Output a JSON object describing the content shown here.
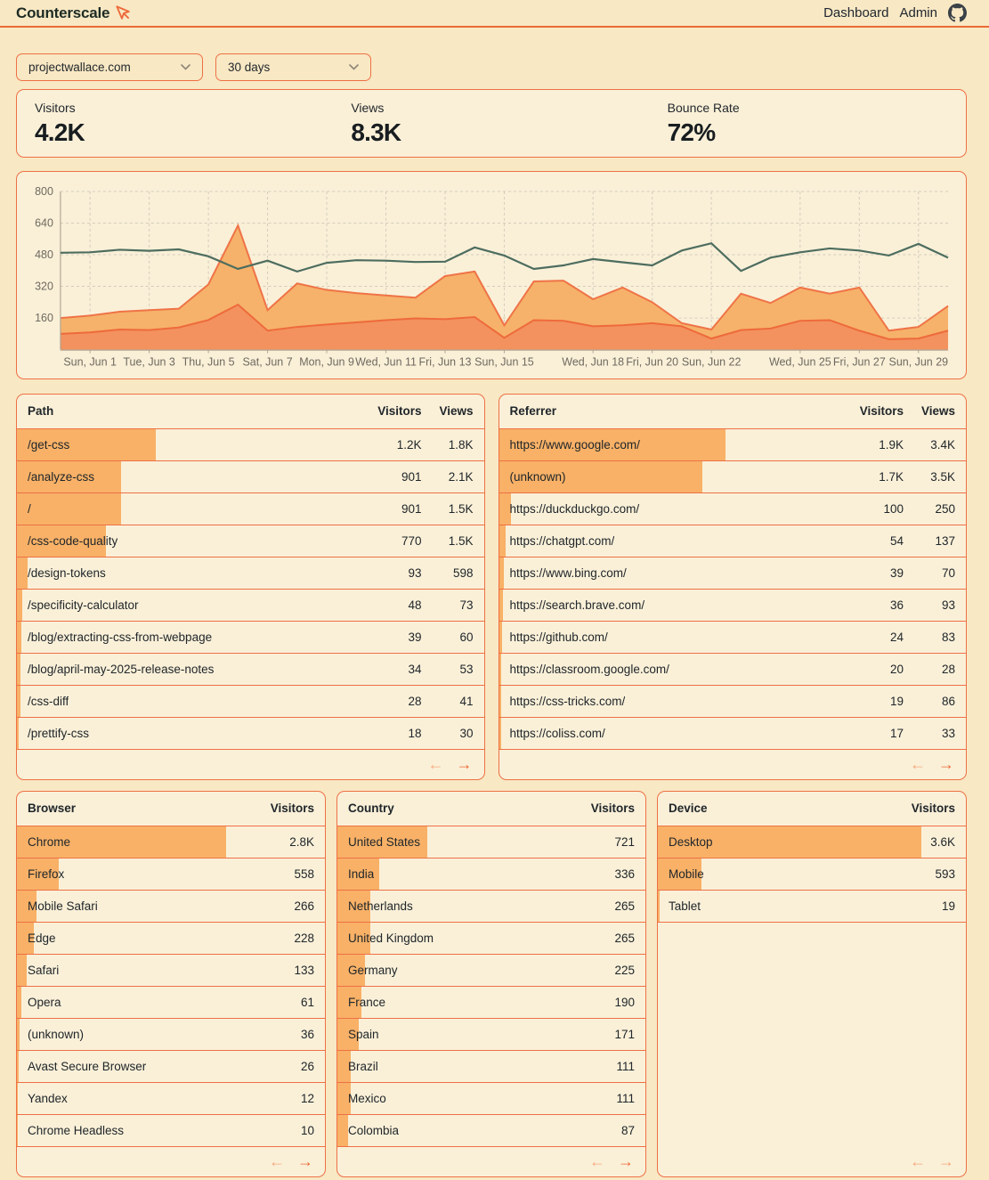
{
  "header": {
    "brand": "Counterscale",
    "nav": [
      "Dashboard",
      "Admin"
    ]
  },
  "filters": {
    "site": "projectwallace.com",
    "range": "30 days"
  },
  "stats": [
    {
      "label": "Visitors",
      "value": "4.2K"
    },
    {
      "label": "Views",
      "value": "8.3K"
    },
    {
      "label": "Bounce Rate",
      "value": "72%"
    }
  ],
  "chart_data": {
    "type": "area",
    "title": "",
    "xlabel": "",
    "ylabel": "",
    "ylim": [
      0,
      800
    ],
    "y_ticks": [
      160,
      320,
      480,
      640,
      800
    ],
    "grid": true,
    "legend": "none",
    "x_ticks": [
      {
        "d": 1,
        "label": "Sun, Jun 1"
      },
      {
        "d": 3,
        "label": "Tue, Jun 3"
      },
      {
        "d": 5,
        "label": "Thu, Jun 5"
      },
      {
        "d": 7,
        "label": "Sat, Jun 7"
      },
      {
        "d": 9,
        "label": "Mon, Jun 9"
      },
      {
        "d": 11,
        "label": "Wed, Jun 11"
      },
      {
        "d": 13,
        "label": "Fri, Jun 13"
      },
      {
        "d": 15,
        "label": "Sun, Jun 15"
      },
      {
        "d": 18,
        "label": "Wed, Jun 18"
      },
      {
        "d": 20,
        "label": "Fri, Jun 20"
      },
      {
        "d": 22,
        "label": "Sun, Jun 22"
      },
      {
        "d": 25,
        "label": "Wed, Jun 25"
      },
      {
        "d": 27,
        "label": "Fri, Jun 27"
      },
      {
        "d": 29,
        "label": "Sun, Jun 29"
      }
    ],
    "series": [
      {
        "name": "views-area",
        "fill": "#f6b26a",
        "stroke": "#ef7347",
        "values": [
          160,
          172,
          192,
          200,
          207,
          330,
          628,
          200,
          335,
          302,
          286,
          274,
          263,
          372,
          395,
          123,
          345,
          349,
          255,
          314,
          240,
          134,
          102,
          283,
          236,
          314,
          283,
          314,
          96,
          115,
          221
        ]
      },
      {
        "name": "visitors-area",
        "fill": "#f3925e",
        "stroke": "#ee6a3c",
        "values": [
          80,
          87,
          102,
          99,
          112,
          150,
          228,
          96,
          115,
          127,
          138,
          149,
          158,
          154,
          165,
          60,
          149,
          146,
          118,
          123,
          134,
          118,
          56,
          99,
          107,
          146,
          149,
          96,
          53,
          56,
          96
        ]
      },
      {
        "name": "trend-line",
        "stroke": "#4d6d5f",
        "values": [
          490,
          492,
          505,
          500,
          507,
          472,
          408,
          450,
          395,
          439,
          452,
          450,
          443,
          445,
          517,
          476,
          408,
          426,
          458,
          442,
          426,
          501,
          538,
          398,
          465,
          492,
          512,
          501,
          476,
          535,
          465
        ]
      }
    ]
  },
  "tables": {
    "path": {
      "title": "Path",
      "columns": [
        "Visitors",
        "Views"
      ],
      "pager": {
        "prev": false,
        "next": true
      },
      "rows": [
        {
          "label": "/get-css",
          "values": [
            "1.2K",
            "1.8K"
          ],
          "v": 1200
        },
        {
          "label": "/analyze-css",
          "values": [
            "901",
            "2.1K"
          ],
          "v": 901
        },
        {
          "label": "/",
          "values": [
            "901",
            "1.5K"
          ],
          "v": 901
        },
        {
          "label": "/css-code-quality",
          "values": [
            "770",
            "1.5K"
          ],
          "v": 770
        },
        {
          "label": "/design-tokens",
          "values": [
            "93",
            "598"
          ],
          "v": 93
        },
        {
          "label": "/specificity-calculator",
          "values": [
            "48",
            "73"
          ],
          "v": 48
        },
        {
          "label": "/blog/extracting-css-from-webpage",
          "values": [
            "39",
            "60"
          ],
          "v": 39
        },
        {
          "label": "/blog/april-may-2025-release-notes",
          "values": [
            "34",
            "53"
          ],
          "v": 34
        },
        {
          "label": "/css-diff",
          "values": [
            "28",
            "41"
          ],
          "v": 28
        },
        {
          "label": "/prettify-css",
          "values": [
            "18",
            "30"
          ],
          "v": 18
        }
      ]
    },
    "referrer": {
      "title": "Referrer",
      "columns": [
        "Visitors",
        "Views"
      ],
      "pager": {
        "prev": false,
        "next": true
      },
      "rows": [
        {
          "label": "https://www.google.com/",
          "values": [
            "1.9K",
            "3.4K"
          ],
          "v": 1900
        },
        {
          "label": "(unknown)",
          "values": [
            "1.7K",
            "3.5K"
          ],
          "v": 1700
        },
        {
          "label": "https://duckduckgo.com/",
          "values": [
            "100",
            "250"
          ],
          "v": 100
        },
        {
          "label": "https://chatgpt.com/",
          "values": [
            "54",
            "137"
          ],
          "v": 54
        },
        {
          "label": "https://www.bing.com/",
          "values": [
            "39",
            "70"
          ],
          "v": 39
        },
        {
          "label": "https://search.brave.com/",
          "values": [
            "36",
            "93"
          ],
          "v": 36
        },
        {
          "label": "https://github.com/",
          "values": [
            "24",
            "83"
          ],
          "v": 24
        },
        {
          "label": "https://classroom.google.com/",
          "values": [
            "20",
            "28"
          ],
          "v": 20
        },
        {
          "label": "https://css-tricks.com/",
          "values": [
            "19",
            "86"
          ],
          "v": 19
        },
        {
          "label": "https://coliss.com/",
          "values": [
            "17",
            "33"
          ],
          "v": 17
        }
      ]
    },
    "browser": {
      "title": "Browser",
      "columns": [
        "Visitors"
      ],
      "pager": {
        "prev": false,
        "next": true
      },
      "rows": [
        {
          "label": "Chrome",
          "values": [
            "2.8K"
          ],
          "v": 2800
        },
        {
          "label": "Firefox",
          "values": [
            "558"
          ],
          "v": 558
        },
        {
          "label": "Mobile Safari",
          "values": [
            "266"
          ],
          "v": 266
        },
        {
          "label": "Edge",
          "values": [
            "228"
          ],
          "v": 228
        },
        {
          "label": "Safari",
          "values": [
            "133"
          ],
          "v": 133
        },
        {
          "label": "Opera",
          "values": [
            "61"
          ],
          "v": 61
        },
        {
          "label": "(unknown)",
          "values": [
            "36"
          ],
          "v": 36
        },
        {
          "label": "Avast Secure Browser",
          "values": [
            "26"
          ],
          "v": 26
        },
        {
          "label": "Yandex",
          "values": [
            "12"
          ],
          "v": 12
        },
        {
          "label": "Chrome Headless",
          "values": [
            "10"
          ],
          "v": 10
        }
      ]
    },
    "country": {
      "title": "Country",
      "columns": [
        "Visitors"
      ],
      "pager": {
        "prev": false,
        "next": true
      },
      "rows": [
        {
          "label": "United States",
          "values": [
            "721"
          ],
          "v": 721
        },
        {
          "label": "India",
          "values": [
            "336"
          ],
          "v": 336
        },
        {
          "label": "Netherlands",
          "values": [
            "265"
          ],
          "v": 265
        },
        {
          "label": "United Kingdom",
          "values": [
            "265"
          ],
          "v": 265
        },
        {
          "label": "Germany",
          "values": [
            "225"
          ],
          "v": 225
        },
        {
          "label": "France",
          "values": [
            "190"
          ],
          "v": 190
        },
        {
          "label": "Spain",
          "values": [
            "171"
          ],
          "v": 171
        },
        {
          "label": "Brazil",
          "values": [
            "111"
          ],
          "v": 111
        },
        {
          "label": "Mexico",
          "values": [
            "111"
          ],
          "v": 111
        },
        {
          "label": "Colombia",
          "values": [
            "87"
          ],
          "v": 87
        }
      ]
    },
    "device": {
      "title": "Device",
      "columns": [
        "Visitors"
      ],
      "pager": {
        "prev": false,
        "next": false
      },
      "rows": [
        {
          "label": "Desktop",
          "values": [
            "3.6K"
          ],
          "v": 3600
        },
        {
          "label": "Mobile",
          "values": [
            "593"
          ],
          "v": 593
        },
        {
          "label": "Tablet",
          "values": [
            "19"
          ],
          "v": 19
        }
      ]
    }
  },
  "ui": {
    "prev_icon": "←",
    "next_icon": "→"
  }
}
